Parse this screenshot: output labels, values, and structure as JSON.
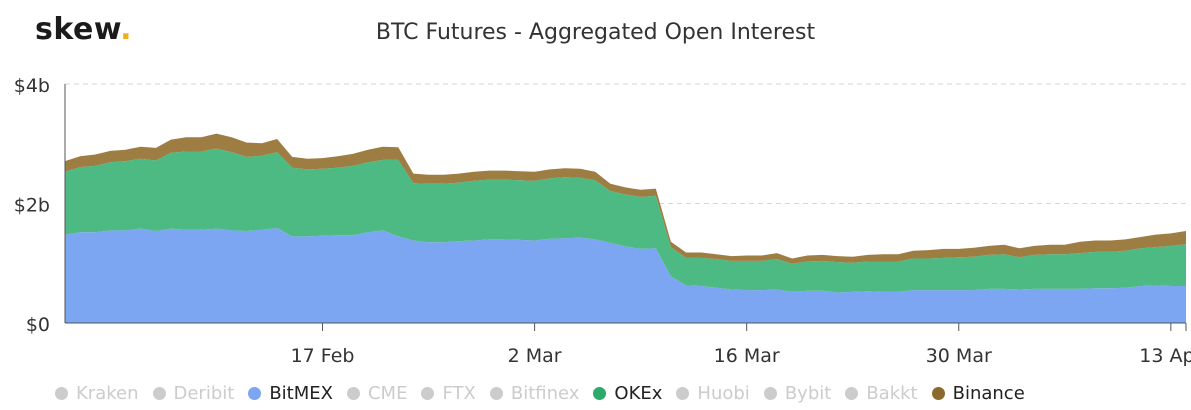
{
  "logo": {
    "text": "skew",
    "dot": "."
  },
  "chart_data": {
    "type": "area",
    "stacked": true,
    "title": "BTC Futures - Aggregated Open Interest",
    "xlabel": "",
    "ylabel": "",
    "y_ticks": [
      {
        "value": 0,
        "label": "$0"
      },
      {
        "value": 2,
        "label": "$2b"
      },
      {
        "value": 4,
        "label": "$4b"
      }
    ],
    "ylim": [
      0,
      4
    ],
    "x_ticks": [
      {
        "day": 17,
        "label": "17 Feb"
      },
      {
        "day": 31,
        "label": "2 Mar"
      },
      {
        "day": 45,
        "label": "16 Mar"
      },
      {
        "day": 59,
        "label": "30 Mar"
      },
      {
        "day": 73,
        "label": "13 Apr"
      }
    ],
    "xlim": [
      0,
      74
    ],
    "x": [
      0,
      1,
      2,
      3,
      4,
      5,
      6,
      7,
      8,
      9,
      10,
      11,
      12,
      13,
      14,
      15,
      16,
      17,
      18,
      19,
      20,
      21,
      22,
      23,
      24,
      25,
      26,
      27,
      28,
      29,
      30,
      31,
      32,
      33,
      34,
      35,
      36,
      37,
      38,
      39,
      40,
      41,
      42,
      43,
      44,
      45,
      46,
      47,
      48,
      49,
      50,
      51,
      52,
      53,
      54,
      55,
      56,
      57,
      58,
      59,
      60,
      61,
      62,
      63,
      64,
      65,
      66,
      67,
      68,
      69,
      70,
      71,
      72,
      73,
      74
    ],
    "series": [
      {
        "name": "BitMEX",
        "color": "#7ca5f2",
        "values": [
          1.48,
          1.52,
          1.52,
          1.55,
          1.55,
          1.58,
          1.54,
          1.58,
          1.56,
          1.56,
          1.58,
          1.55,
          1.54,
          1.56,
          1.59,
          1.45,
          1.45,
          1.46,
          1.47,
          1.47,
          1.52,
          1.55,
          1.45,
          1.38,
          1.35,
          1.35,
          1.37,
          1.38,
          1.4,
          1.4,
          1.39,
          1.38,
          1.41,
          1.42,
          1.43,
          1.4,
          1.34,
          1.28,
          1.24,
          1.25,
          0.78,
          0.63,
          0.62,
          0.59,
          0.56,
          0.55,
          0.55,
          0.56,
          0.52,
          0.54,
          0.54,
          0.51,
          0.52,
          0.53,
          0.52,
          0.52,
          0.55,
          0.55,
          0.55,
          0.55,
          0.55,
          0.57,
          0.57,
          0.56,
          0.57,
          0.57,
          0.57,
          0.57,
          0.58,
          0.58,
          0.59,
          0.62,
          0.63,
          0.62,
          0.62
        ]
      },
      {
        "name": "OKEx",
        "color": "#4dba84",
        "values": [
          1.05,
          1.09,
          1.11,
          1.14,
          1.16,
          1.17,
          1.18,
          1.27,
          1.31,
          1.31,
          1.34,
          1.31,
          1.24,
          1.24,
          1.27,
          1.15,
          1.12,
          1.12,
          1.13,
          1.16,
          1.17,
          1.18,
          1.28,
          0.96,
          0.98,
          0.98,
          0.98,
          1.0,
          1.0,
          1.0,
          1.0,
          1.0,
          1.01,
          1.02,
          1.0,
          0.99,
          0.87,
          0.87,
          0.87,
          0.88,
          0.49,
          0.46,
          0.47,
          0.48,
          0.48,
          0.49,
          0.49,
          0.51,
          0.47,
          0.49,
          0.5,
          0.51,
          0.49,
          0.5,
          0.51,
          0.51,
          0.53,
          0.53,
          0.54,
          0.55,
          0.56,
          0.57,
          0.58,
          0.54,
          0.57,
          0.58,
          0.58,
          0.6,
          0.61,
          0.61,
          0.62,
          0.63,
          0.64,
          0.67,
          0.7
        ]
      },
      {
        "name": "Binance",
        "color": "#9e7d42",
        "values": [
          0.18,
          0.18,
          0.19,
          0.19,
          0.19,
          0.2,
          0.21,
          0.22,
          0.24,
          0.24,
          0.25,
          0.25,
          0.24,
          0.21,
          0.22,
          0.18,
          0.18,
          0.18,
          0.19,
          0.2,
          0.21,
          0.22,
          0.21,
          0.16,
          0.15,
          0.15,
          0.15,
          0.15,
          0.15,
          0.15,
          0.15,
          0.15,
          0.15,
          0.15,
          0.15,
          0.14,
          0.12,
          0.12,
          0.12,
          0.12,
          0.09,
          0.09,
          0.09,
          0.08,
          0.08,
          0.09,
          0.09,
          0.1,
          0.09,
          0.1,
          0.1,
          0.1,
          0.1,
          0.11,
          0.12,
          0.12,
          0.13,
          0.14,
          0.15,
          0.14,
          0.15,
          0.15,
          0.16,
          0.15,
          0.15,
          0.16,
          0.16,
          0.19,
          0.19,
          0.19,
          0.19,
          0.19,
          0.21,
          0.21,
          0.22
        ]
      }
    ],
    "grid": {
      "horizontal": true,
      "vertical": false
    }
  },
  "legend": [
    {
      "label": "Kraken",
      "color": "#cccccc",
      "active": false
    },
    {
      "label": "Deribit",
      "color": "#cccccc",
      "active": false
    },
    {
      "label": "BitMEX",
      "color": "#7ca5f2",
      "active": true
    },
    {
      "label": "CME",
      "color": "#cccccc",
      "active": false
    },
    {
      "label": "FTX",
      "color": "#cccccc",
      "active": false
    },
    {
      "label": "Bitfinex",
      "color": "#cccccc",
      "active": false
    },
    {
      "label": "OKEx",
      "color": "#2daa6a",
      "active": true
    },
    {
      "label": "Huobi",
      "color": "#cccccc",
      "active": false
    },
    {
      "label": "Bybit",
      "color": "#cccccc",
      "active": false
    },
    {
      "label": "Bakkt",
      "color": "#cccccc",
      "active": false
    },
    {
      "label": "Binance",
      "color": "#8a6a2c",
      "active": true
    }
  ]
}
